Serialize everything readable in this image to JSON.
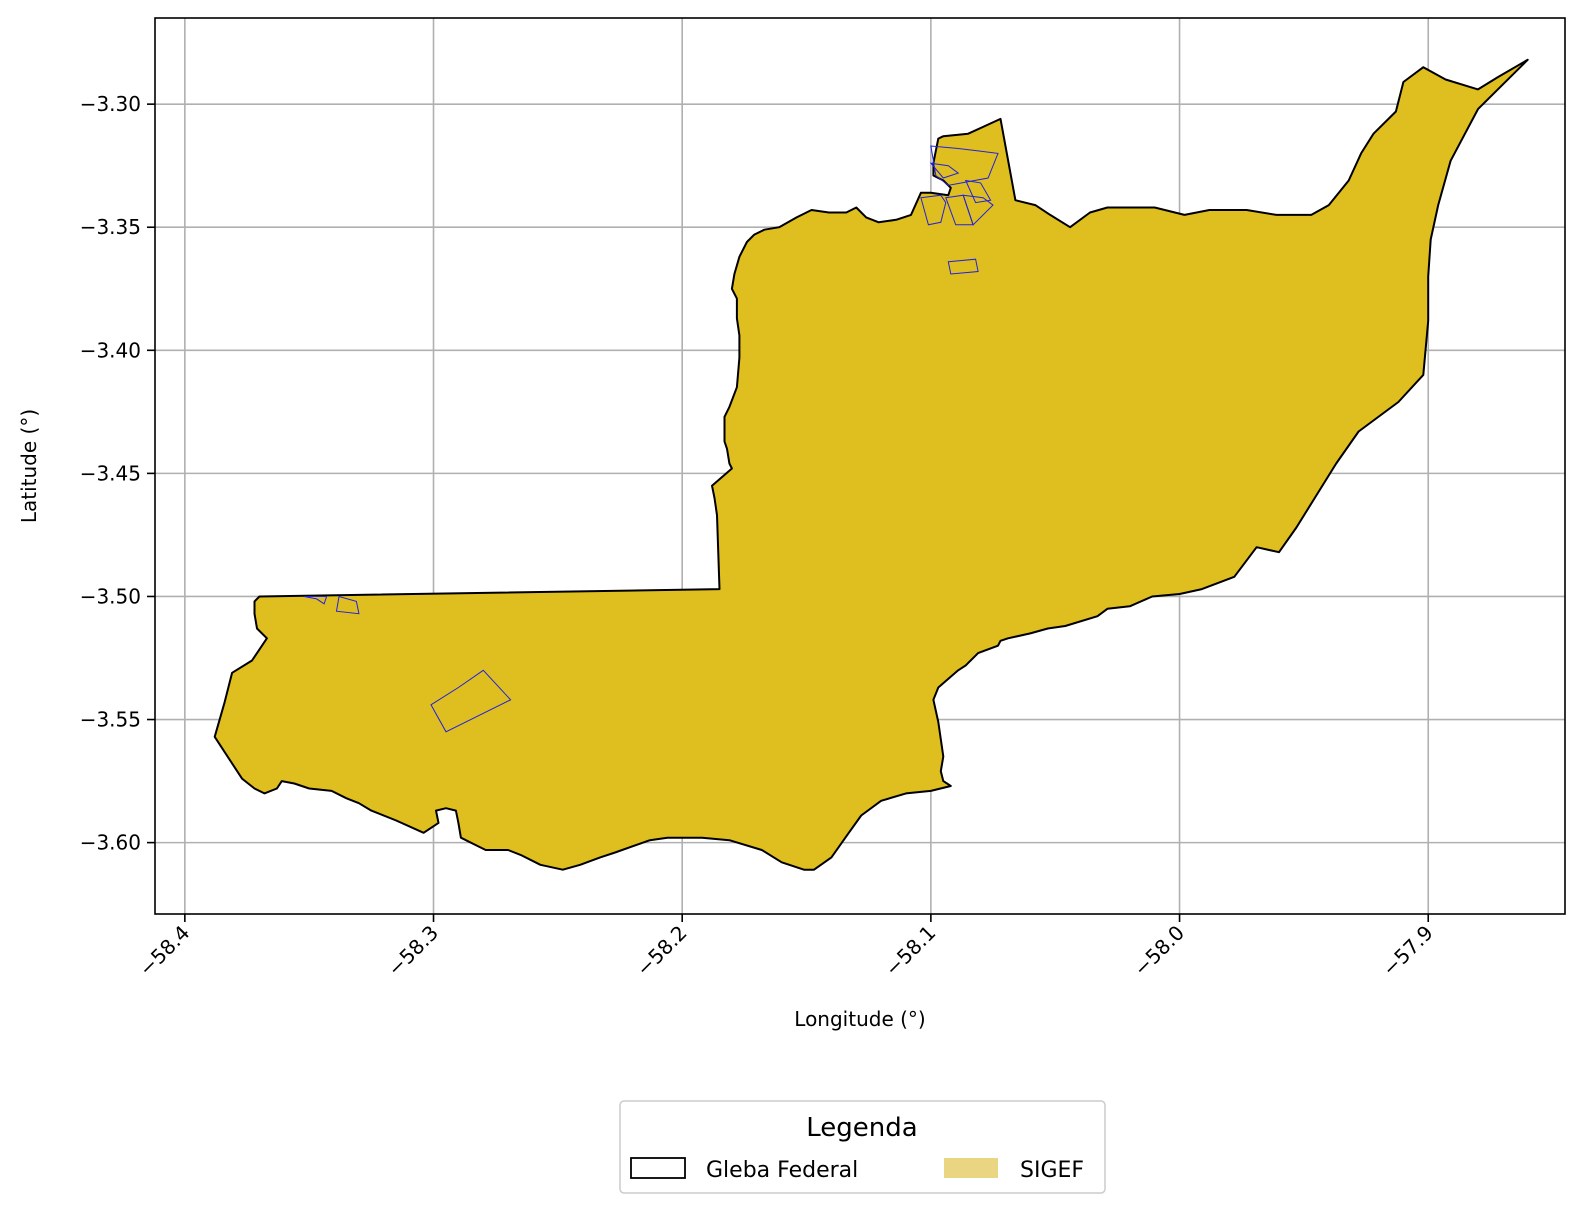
{
  "chart_data": {
    "type": "map",
    "title": "",
    "xlabel": "Longitude (°)",
    "ylabel": "Latitude (°)",
    "xlim": [
      -58.412,
      -57.845
    ],
    "ylim": [
      -3.629,
      -3.265
    ],
    "grid": true,
    "x_ticks": [
      {
        "value": -58.4,
        "label": "−58.4"
      },
      {
        "value": -58.3,
        "label": "−58.3"
      },
      {
        "value": -58.2,
        "label": "−58.2"
      },
      {
        "value": -58.1,
        "label": "−58.1"
      },
      {
        "value": -58.0,
        "label": "−58.0"
      },
      {
        "value": -57.9,
        "label": "−57.9"
      }
    ],
    "y_ticks": [
      {
        "value": -3.3,
        "label": "−3.30"
      },
      {
        "value": -3.35,
        "label": "−3.35"
      },
      {
        "value": -3.4,
        "label": "−3.40"
      },
      {
        "value": -3.45,
        "label": "−3.45"
      },
      {
        "value": -3.5,
        "label": "−3.50"
      },
      {
        "value": -3.55,
        "label": "−3.55"
      },
      {
        "value": -3.6,
        "label": "−3.60"
      }
    ],
    "colors": {
      "gleba_fill": "#dfbe20",
      "gleba_edge": "#000000",
      "sigef_edge": "#2222dd",
      "sigef_legend_fill": "#ead582",
      "grid": "#b0b0b0"
    },
    "legend": {
      "title": "Legenda",
      "placement": "bottom-center",
      "entries": [
        {
          "label": "Gleba Federal",
          "symbol": "outline-box"
        },
        {
          "label": "SIGEF",
          "symbol": "filled-box"
        }
      ]
    },
    "gleba_federal": [
      [
        -58.37,
        -3.5
      ],
      [
        -58.185,
        -3.497
      ],
      [
        -58.186,
        -3.467
      ],
      [
        -58.187,
        -3.46
      ],
      [
        -58.188,
        -3.455
      ],
      [
        -58.18,
        -3.448
      ],
      [
        -58.181,
        -3.446
      ],
      [
        -58.182,
        -3.44
      ],
      [
        -58.183,
        -3.437
      ],
      [
        -58.183,
        -3.427
      ],
      [
        -58.181,
        -3.423
      ],
      [
        -58.178,
        -3.415
      ],
      [
        -58.177,
        -3.403
      ],
      [
        -58.177,
        -3.394
      ],
      [
        -58.178,
        -3.387
      ],
      [
        -58.178,
        -3.379
      ],
      [
        -58.18,
        -3.375
      ],
      [
        -58.179,
        -3.369
      ],
      [
        -58.177,
        -3.362
      ],
      [
        -58.174,
        -3.356
      ],
      [
        -58.171,
        -3.353
      ],
      [
        -58.167,
        -3.351
      ],
      [
        -58.161,
        -3.35
      ],
      [
        -58.154,
        -3.346
      ],
      [
        -58.148,
        -3.343
      ],
      [
        -58.141,
        -3.344
      ],
      [
        -58.134,
        -3.344
      ],
      [
        -58.13,
        -3.342
      ],
      [
        -58.126,
        -3.346
      ],
      [
        -58.121,
        -3.348
      ],
      [
        -58.114,
        -3.347
      ],
      [
        -58.108,
        -3.345
      ],
      [
        -58.104,
        -3.336
      ],
      [
        -58.1,
        -3.336
      ],
      [
        -58.093,
        -3.337
      ],
      [
        -58.092,
        -3.334
      ],
      [
        -58.095,
        -3.331
      ],
      [
        -58.099,
        -3.329
      ],
      [
        -58.099,
        -3.324
      ],
      [
        -58.098,
        -3.319
      ],
      [
        -58.097,
        -3.314
      ],
      [
        -58.095,
        -3.313
      ],
      [
        -58.085,
        -3.312
      ],
      [
        -58.072,
        -3.306
      ],
      [
        -58.066,
        -3.339
      ],
      [
        -58.058,
        -3.341
      ],
      [
        -58.052,
        -3.345
      ],
      [
        -58.044,
        -3.35
      ],
      [
        -58.036,
        -3.344
      ],
      [
        -58.029,
        -3.342
      ],
      [
        -58.01,
        -3.342
      ],
      [
        -57.998,
        -3.345
      ],
      [
        -57.988,
        -3.343
      ],
      [
        -57.973,
        -3.343
      ],
      [
        -57.961,
        -3.345
      ],
      [
        -57.947,
        -3.345
      ],
      [
        -57.94,
        -3.341
      ],
      [
        -57.932,
        -3.331
      ],
      [
        -57.927,
        -3.32
      ],
      [
        -57.922,
        -3.312
      ],
      [
        -57.913,
        -3.303
      ],
      [
        -57.91,
        -3.291
      ],
      [
        -57.902,
        -3.285
      ],
      [
        -57.893,
        -3.29
      ],
      [
        -57.88,
        -3.294
      ],
      [
        -57.872,
        -3.289
      ],
      [
        -57.86,
        -3.282
      ],
      [
        -57.88,
        -3.302
      ],
      [
        -57.891,
        -3.323
      ],
      [
        -57.896,
        -3.341
      ],
      [
        -57.899,
        -3.355
      ],
      [
        -57.9,
        -3.37
      ],
      [
        -57.9,
        -3.388
      ],
      [
        -57.902,
        -3.41
      ],
      [
        -57.912,
        -3.421
      ],
      [
        -57.928,
        -3.433
      ],
      [
        -57.937,
        -3.446
      ],
      [
        -57.945,
        -3.459
      ],
      [
        -57.953,
        -3.472
      ],
      [
        -57.96,
        -3.482
      ],
      [
        -57.969,
        -3.48
      ],
      [
        -57.978,
        -3.492
      ],
      [
        -57.991,
        -3.497
      ],
      [
        -58.0,
        -3.499
      ],
      [
        -58.011,
        -3.5
      ],
      [
        -58.02,
        -3.504
      ],
      [
        -58.029,
        -3.505
      ],
      [
        -58.033,
        -3.508
      ],
      [
        -58.046,
        -3.512
      ],
      [
        -58.053,
        -3.513
      ],
      [
        -58.06,
        -3.515
      ],
      [
        -58.069,
        -3.517
      ],
      [
        -58.072,
        -3.518
      ],
      [
        -58.073,
        -3.52
      ],
      [
        -58.081,
        -3.523
      ],
      [
        -58.086,
        -3.528
      ],
      [
        -58.089,
        -3.53
      ],
      [
        -58.097,
        -3.537
      ],
      [
        -58.099,
        -3.542
      ],
      [
        -58.097,
        -3.551
      ],
      [
        -58.095,
        -3.565
      ],
      [
        -58.096,
        -3.571
      ],
      [
        -58.095,
        -3.575
      ],
      [
        -58.092,
        -3.577
      ],
      [
        -58.1,
        -3.579
      ],
      [
        -58.11,
        -3.58
      ],
      [
        -58.12,
        -3.583
      ],
      [
        -58.128,
        -3.589
      ],
      [
        -58.133,
        -3.596
      ],
      [
        -58.14,
        -3.606
      ],
      [
        -58.147,
        -3.611
      ],
      [
        -58.151,
        -3.611
      ],
      [
        -58.16,
        -3.608
      ],
      [
        -58.168,
        -3.603
      ],
      [
        -58.181,
        -3.599
      ],
      [
        -58.192,
        -3.598
      ],
      [
        -58.206,
        -3.598
      ],
      [
        -58.213,
        -3.599
      ],
      [
        -58.227,
        -3.604
      ],
      [
        -58.233,
        -3.606
      ],
      [
        -58.241,
        -3.609
      ],
      [
        -58.248,
        -3.611
      ],
      [
        -58.257,
        -3.609
      ],
      [
        -58.265,
        -3.605
      ],
      [
        -58.27,
        -3.603
      ],
      [
        -58.279,
        -3.603
      ],
      [
        -58.283,
        -3.601
      ],
      [
        -58.289,
        -3.598
      ],
      [
        -58.29,
        -3.592
      ],
      [
        -58.291,
        -3.587
      ],
      [
        -58.295,
        -3.586
      ],
      [
        -58.299,
        -3.587
      ],
      [
        -58.298,
        -3.592
      ],
      [
        -58.304,
        -3.596
      ],
      [
        -58.315,
        -3.591
      ],
      [
        -58.325,
        -3.587
      ],
      [
        -58.33,
        -3.584
      ],
      [
        -58.335,
        -3.582
      ],
      [
        -58.341,
        -3.579
      ],
      [
        -58.35,
        -3.578
      ],
      [
        -58.356,
        -3.576
      ],
      [
        -58.361,
        -3.575
      ],
      [
        -58.363,
        -3.578
      ],
      [
        -58.368,
        -3.58
      ],
      [
        -58.372,
        -3.578
      ],
      [
        -58.377,
        -3.574
      ],
      [
        -58.388,
        -3.557
      ],
      [
        -58.384,
        -3.543
      ],
      [
        -58.381,
        -3.531
      ],
      [
        -58.373,
        -3.526
      ],
      [
        -58.367,
        -3.517
      ],
      [
        -58.371,
        -3.513
      ],
      [
        -58.372,
        -3.507
      ],
      [
        -58.372,
        -3.502
      ],
      [
        -58.37,
        -3.5
      ]
    ],
    "sigef_parcels": [
      [
        [
          -58.29,
          -3.537
        ],
        [
          -58.28,
          -3.53
        ],
        [
          -58.269,
          -3.542
        ],
        [
          -58.295,
          -3.555
        ],
        [
          -58.301,
          -3.544
        ],
        [
          -58.29,
          -3.537
        ]
      ],
      [
        [
          -58.331,
          -3.502
        ],
        [
          -58.33,
          -3.507
        ],
        [
          -58.339,
          -3.506
        ],
        [
          -58.338,
          -3.5
        ],
        [
          -58.331,
          -3.502
        ]
      ],
      [
        [
          -58.352,
          -3.5
        ],
        [
          -58.347,
          -3.501
        ],
        [
          -58.344,
          -3.503
        ],
        [
          -58.343,
          -3.5
        ],
        [
          -58.352,
          -3.5
        ]
      ],
      [
        [
          -58.093,
          -3.364
        ],
        [
          -58.082,
          -3.363
        ],
        [
          -58.081,
          -3.368
        ],
        [
          -58.092,
          -3.369
        ],
        [
          -58.093,
          -3.364
        ]
      ],
      [
        [
          -58.104,
          -3.338
        ],
        [
          -58.096,
          -3.337
        ],
        [
          -58.094,
          -3.34
        ],
        [
          -58.096,
          -3.348
        ],
        [
          -58.101,
          -3.349
        ],
        [
          -58.104,
          -3.338
        ]
      ],
      [
        [
          -58.094,
          -3.338
        ],
        [
          -58.087,
          -3.337
        ],
        [
          -58.083,
          -3.349
        ],
        [
          -58.09,
          -3.349
        ],
        [
          -58.094,
          -3.338
        ]
      ],
      [
        [
          -58.087,
          -3.337
        ],
        [
          -58.079,
          -3.338
        ],
        [
          -58.075,
          -3.341
        ],
        [
          -58.083,
          -3.349
        ],
        [
          -58.087,
          -3.337
        ]
      ],
      [
        [
          -58.1,
          -3.317
        ],
        [
          -58.089,
          -3.318
        ],
        [
          -58.081,
          -3.319
        ],
        [
          -58.073,
          -3.32
        ],
        [
          -58.077,
          -3.33
        ],
        [
          -58.093,
          -3.333
        ],
        [
          -58.098,
          -3.329
        ],
        [
          -58.1,
          -3.317
        ]
      ],
      [
        [
          -58.086,
          -3.331
        ],
        [
          -58.08,
          -3.332
        ],
        [
          -58.076,
          -3.339
        ],
        [
          -58.082,
          -3.34
        ],
        [
          -58.086,
          -3.331
        ]
      ],
      [
        [
          -58.1,
          -3.324
        ],
        [
          -58.093,
          -3.325
        ],
        [
          -58.089,
          -3.328
        ],
        [
          -58.095,
          -3.33
        ],
        [
          -58.1,
          -3.324
        ]
      ]
    ]
  }
}
